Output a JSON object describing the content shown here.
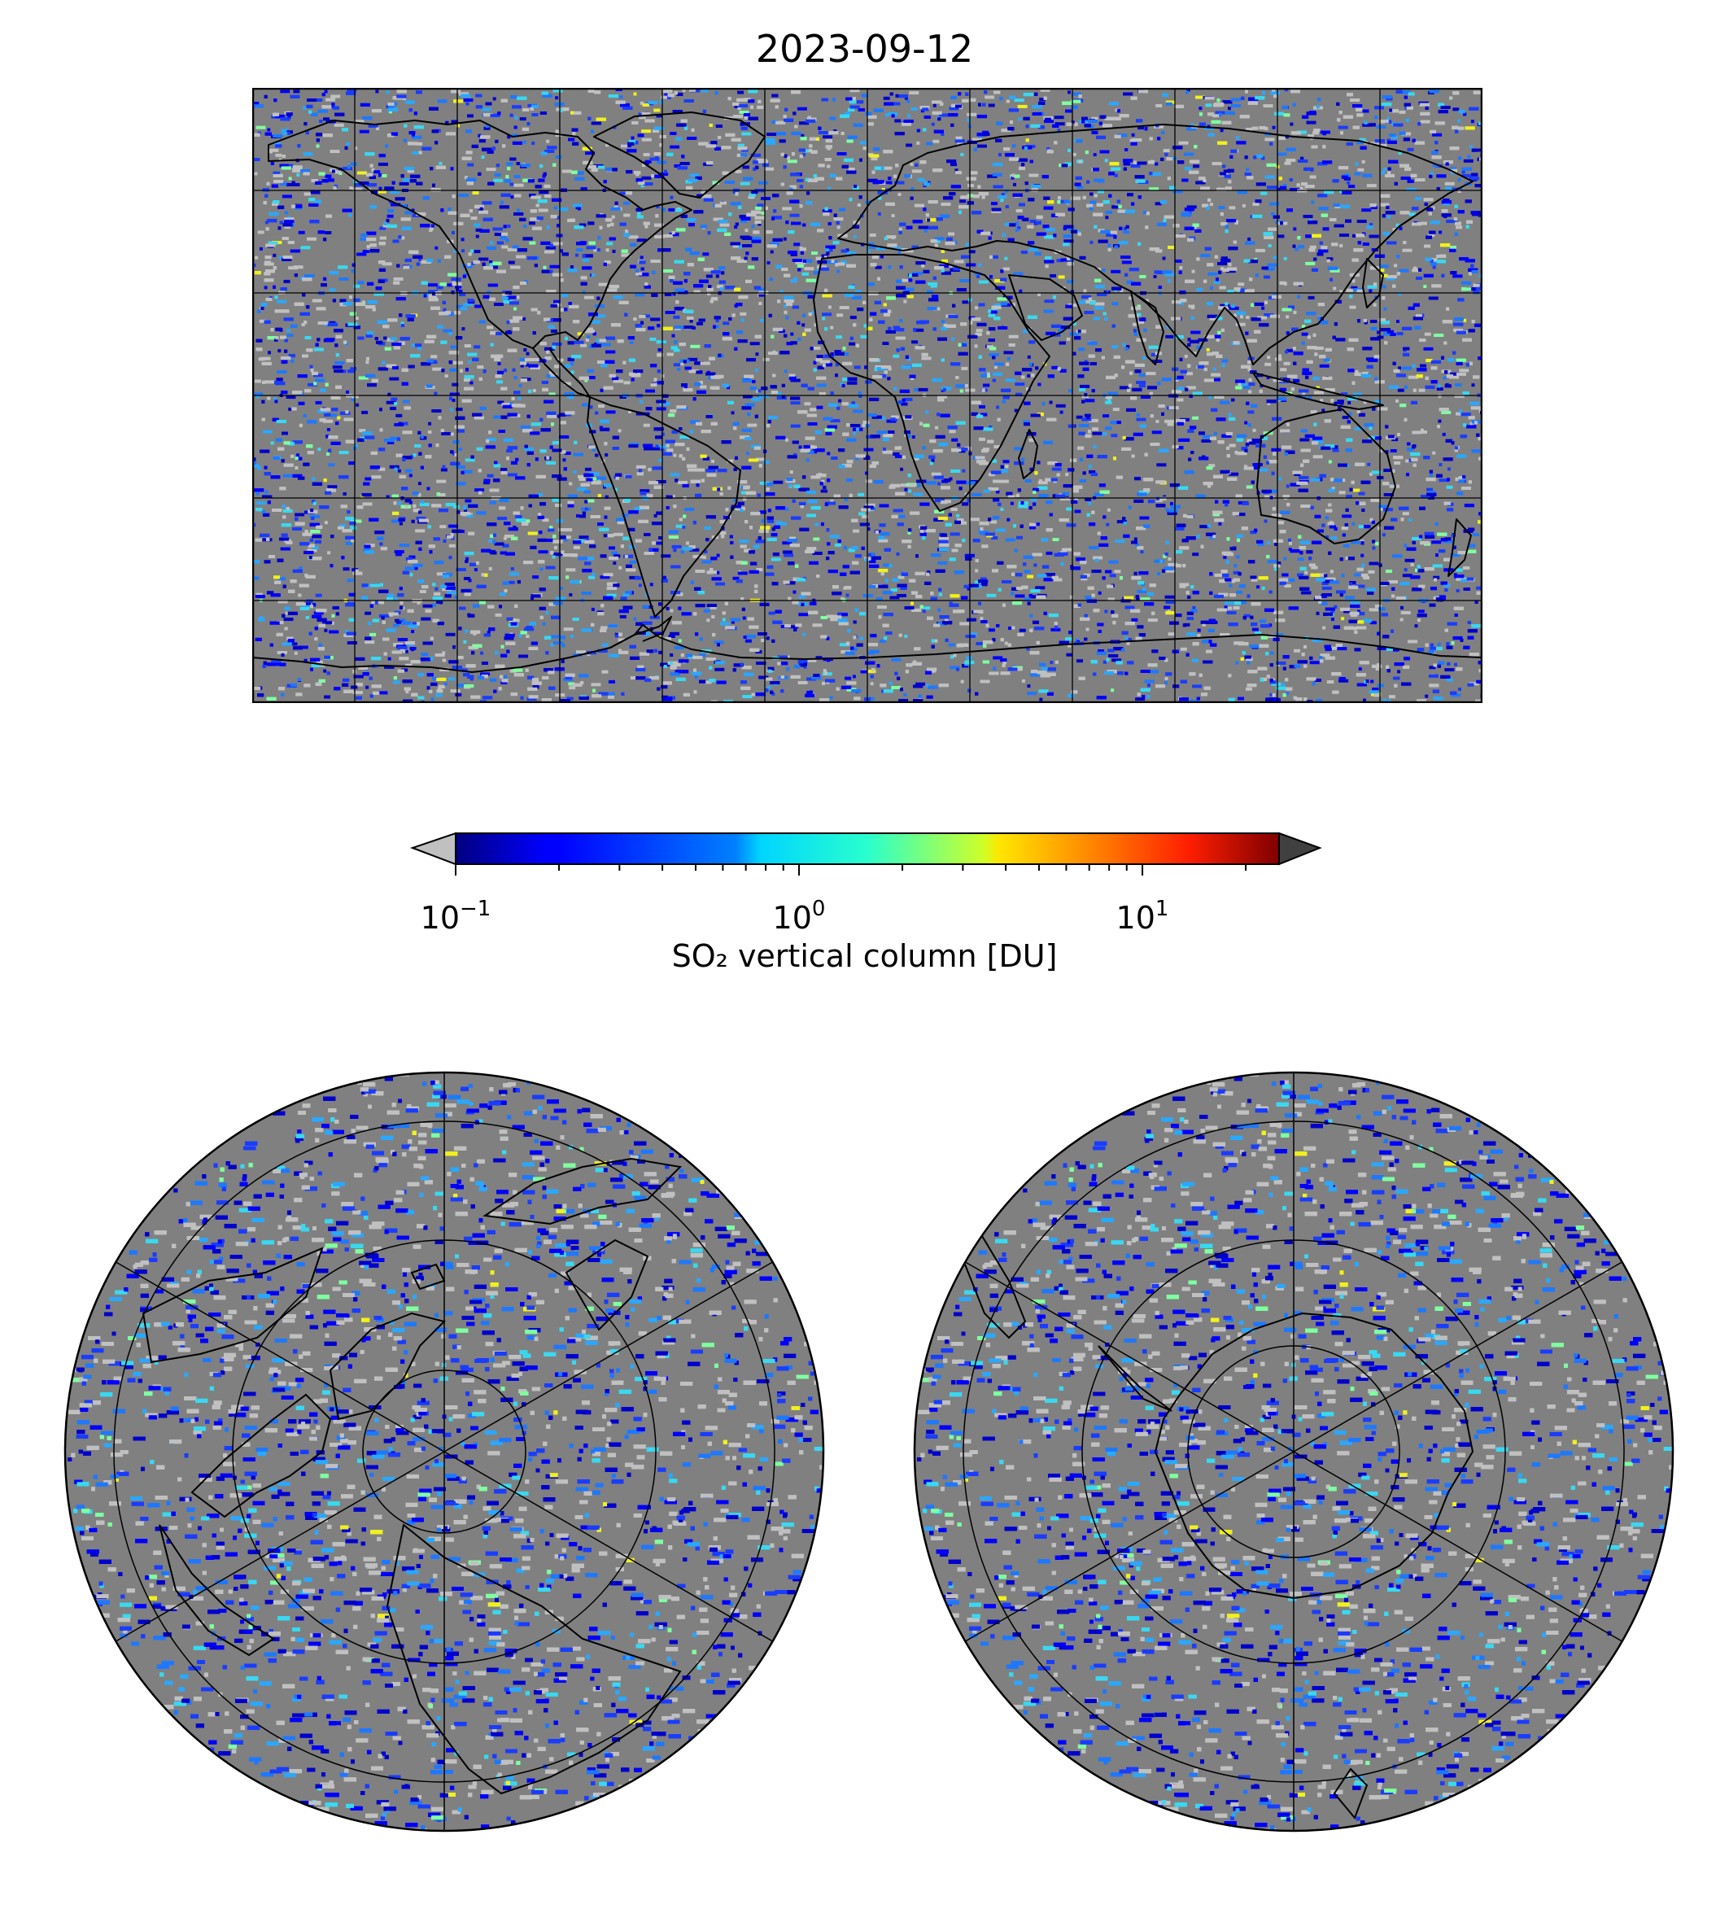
{
  "title": "2023-09-12",
  "colorbar": {
    "label": "SO₂ vertical column [DU]",
    "scale": "log",
    "range": [
      0.1,
      25
    ],
    "colormap": "jet",
    "ticks": [
      {
        "base": "10",
        "exp": "−1",
        "value": 0.1
      },
      {
        "base": "10",
        "exp": "0",
        "value": 1
      },
      {
        "base": "10",
        "exp": "1",
        "value": 10
      }
    ],
    "under_color": "#c0c0c0",
    "over_color": "#404040"
  },
  "colors": {
    "no_data": "#808080",
    "below_range": "#c0c0c0",
    "coastline": "#000000",
    "gridline": "#000000"
  },
  "maps": {
    "global": {
      "projection": "plate-carree",
      "grid_lon_step_deg": 30,
      "grid_lat_step_deg": 30
    },
    "north": {
      "projection": "north-polar-stereographic",
      "grid_lat_circles": [
        0,
        30,
        60
      ],
      "meridian_step_deg": 60
    },
    "south": {
      "projection": "south-polar-stereographic",
      "grid_lat_circles": [
        0,
        -30,
        -60
      ],
      "meridian_step_deg": 60
    }
  }
}
